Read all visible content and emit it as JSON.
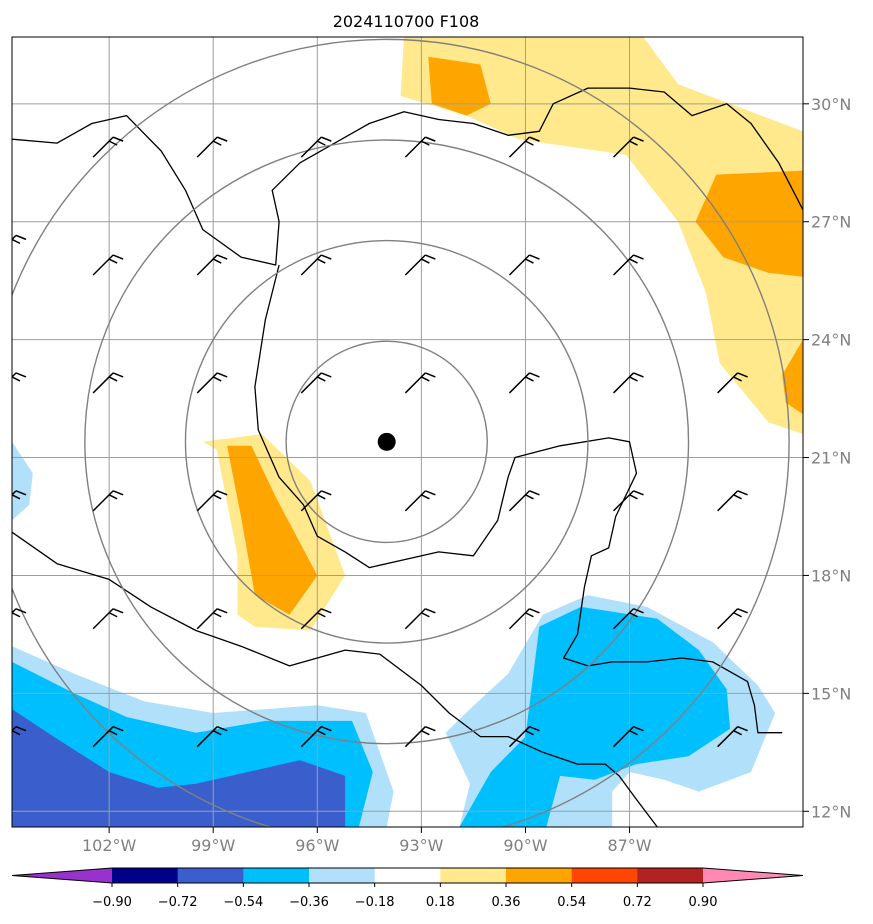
{
  "chart_data": {
    "type": "map",
    "title": "2024110700 F108",
    "projection": "lat-lon",
    "lon_range": [
      -104.8,
      -82.0
    ],
    "lat_range": [
      11.6,
      31.7
    ],
    "x_ticks": [
      {
        "lon": -102,
        "label": "102°W"
      },
      {
        "lon": -99,
        "label": "99°W"
      },
      {
        "lon": -96,
        "label": "96°W"
      },
      {
        "lon": -93,
        "label": "93°W"
      },
      {
        "lon": -90,
        "label": "90°W"
      },
      {
        "lon": -87,
        "label": "87°W"
      }
    ],
    "y_ticks": [
      {
        "lat": 12,
        "label": "12°N"
      },
      {
        "lat": 15,
        "label": "15°N"
      },
      {
        "lat": 18,
        "label": "18°N"
      },
      {
        "lat": 21,
        "label": "21°N"
      },
      {
        "lat": 24,
        "label": "24°N"
      },
      {
        "lat": 27,
        "label": "27°N"
      },
      {
        "lat": 30,
        "label": "30°N"
      }
    ],
    "grid": true,
    "center": {
      "lon": -94.0,
      "lat": 21.4
    },
    "range_rings_deg": [
      2.9,
      5.8,
      8.7,
      11.6
    ],
    "colorbar": {
      "levels": [
        "−0.90",
        "−0.72",
        "−0.54",
        "−0.36",
        "−0.18",
        "0.18",
        "0.36",
        "0.54",
        "0.72",
        "0.90"
      ],
      "colors": [
        "#9932cc",
        "#00008b",
        "#3a5fcd",
        "#00bfff",
        "#b0e0fa",
        "#ffffff",
        "#ffe98c",
        "#ffa500",
        "#ff4500",
        "#b22222",
        "#ff88b4"
      ],
      "extend": "both"
    },
    "filled_regions": [
      {
        "level": "0.18-0.36",
        "color": "#ffe98c",
        "points": [
          [
            -93.5,
            31.7
          ],
          [
            -86.6,
            31.7
          ],
          [
            -85.6,
            30.5
          ],
          [
            -82.0,
            29.3
          ],
          [
            -82.0,
            21.6
          ],
          [
            -83.0,
            21.9
          ],
          [
            -84.4,
            23.4
          ],
          [
            -84.8,
            25.2
          ],
          [
            -85.6,
            27.0
          ],
          [
            -87.1,
            28.7
          ],
          [
            -90.2,
            29.1
          ],
          [
            -91.7,
            29.7
          ],
          [
            -93.6,
            30.2
          ]
        ]
      },
      {
        "level": "0.36-0.54",
        "color": "#ffa500",
        "points": [
          [
            -92.8,
            31.2
          ],
          [
            -91.3,
            31.0
          ],
          [
            -91.0,
            30.0
          ],
          [
            -91.7,
            29.7
          ],
          [
            -92.7,
            30.0
          ]
        ]
      },
      {
        "level": "0.36-0.54",
        "color": "#ffa500",
        "points": [
          [
            -84.5,
            28.2
          ],
          [
            -82.0,
            28.3
          ],
          [
            -82.0,
            25.6
          ],
          [
            -83.0,
            25.7
          ],
          [
            -84.3,
            26.1
          ],
          [
            -85.1,
            27.0
          ]
        ]
      },
      {
        "level": "0.36-0.54",
        "color": "#ffa500",
        "points": [
          [
            -82.0,
            24.0
          ],
          [
            -82.0,
            22.1
          ],
          [
            -82.5,
            22.4
          ],
          [
            -82.6,
            23.1
          ]
        ]
      },
      {
        "level": "0.18-0.36",
        "color": "#ffe98c",
        "points": [
          [
            -99.3,
            21.4
          ],
          [
            -97.6,
            21.6
          ],
          [
            -96.2,
            20.4
          ],
          [
            -95.2,
            18.0
          ],
          [
            -96.2,
            16.6
          ],
          [
            -97.8,
            16.7
          ],
          [
            -98.3,
            17.0
          ],
          [
            -98.3,
            18.5
          ],
          [
            -98.9,
            21.2
          ]
        ]
      },
      {
        "level": "0.36-0.54",
        "color": "#ffa500",
        "points": [
          [
            -98.6,
            21.3
          ],
          [
            -97.9,
            21.3
          ],
          [
            -97.2,
            20.0
          ],
          [
            -96.0,
            18.0
          ],
          [
            -96.8,
            17.0
          ],
          [
            -97.8,
            17.5
          ],
          [
            -98.2,
            19.5
          ]
        ]
      },
      {
        "level": "-0.36--0.18",
        "color": "#b0e0fa",
        "points": [
          [
            -104.8,
            21.4
          ],
          [
            -104.2,
            20.6
          ],
          [
            -104.3,
            19.8
          ],
          [
            -104.8,
            19.4
          ]
        ]
      },
      {
        "level": "-0.36--0.18",
        "color": "#b0e0fa",
        "points": [
          [
            -104.8,
            16.2
          ],
          [
            -103.0,
            15.5
          ],
          [
            -101.0,
            14.8
          ],
          [
            -99.0,
            14.5
          ],
          [
            -96.0,
            14.7
          ],
          [
            -94.6,
            14.5
          ],
          [
            -93.8,
            12.5
          ],
          [
            -94.0,
            11.6
          ],
          [
            -104.8,
            11.6
          ]
        ]
      },
      {
        "level": "-0.36--0.18",
        "color": "#b0e0fa",
        "points": [
          [
            -90.5,
            15.5
          ],
          [
            -89.5,
            17.0
          ],
          [
            -88.2,
            17.5
          ],
          [
            -86.5,
            17.2
          ],
          [
            -84.6,
            16.3
          ],
          [
            -83.3,
            15.2
          ],
          [
            -82.8,
            14.5
          ],
          [
            -83.5,
            13.0
          ],
          [
            -85.0,
            12.5
          ],
          [
            -86.0,
            12.8
          ],
          [
            -87.0,
            13.0
          ],
          [
            -87.5,
            12.5
          ],
          [
            -87.5,
            11.6
          ],
          [
            -91.9,
            11.6
          ],
          [
            -91.6,
            12.7
          ],
          [
            -92.3,
            14.0
          ],
          [
            -91.6,
            14.6
          ]
        ]
      },
      {
        "level": "-0.54--0.36",
        "color": "#00bfff",
        "points": [
          [
            -104.8,
            15.8
          ],
          [
            -103.0,
            15.0
          ],
          [
            -101.5,
            14.4
          ],
          [
            -99.5,
            14.0
          ],
          [
            -97.5,
            14.3
          ],
          [
            -95.0,
            14.3
          ],
          [
            -94.4,
            13.0
          ],
          [
            -94.8,
            11.6
          ],
          [
            -104.8,
            11.6
          ]
        ]
      },
      {
        "level": "-0.54--0.36",
        "color": "#00bfff",
        "points": [
          [
            -89.6,
            16.7
          ],
          [
            -88.4,
            17.2
          ],
          [
            -86.2,
            16.9
          ],
          [
            -85.0,
            16.1
          ],
          [
            -84.2,
            15.1
          ],
          [
            -84.1,
            14.1
          ],
          [
            -85.3,
            13.4
          ],
          [
            -86.8,
            13.2
          ],
          [
            -88.0,
            12.8
          ],
          [
            -89.0,
            12.9
          ],
          [
            -89.4,
            11.6
          ],
          [
            -91.9,
            11.6
          ],
          [
            -91.0,
            13.0
          ],
          [
            -90.0,
            13.9
          ],
          [
            -89.8,
            15.3
          ]
        ]
      },
      {
        "level": "-0.72--0.54",
        "color": "#3a5fcd",
        "points": [
          [
            -104.8,
            14.6
          ],
          [
            -103.6,
            13.9
          ],
          [
            -102.0,
            13.0
          ],
          [
            -100.6,
            12.6
          ],
          [
            -99.5,
            12.7
          ],
          [
            -98.0,
            13.0
          ],
          [
            -96.5,
            13.3
          ],
          [
            -95.2,
            12.9
          ],
          [
            -95.2,
            11.6
          ],
          [
            -104.8,
            11.6
          ]
        ]
      }
    ],
    "wind_barbs": [
      {
        "lon": -104.8,
        "lat": 26.5
      },
      {
        "lon": -102.0,
        "lat": 26.0
      },
      {
        "lon": -99.0,
        "lat": 26.0
      },
      {
        "lon": -96.0,
        "lat": 26.0
      },
      {
        "lon": -93.0,
        "lat": 26.0
      },
      {
        "lon": -90.0,
        "lat": 26.0
      },
      {
        "lon": -87.0,
        "lat": 26.0
      },
      {
        "lon": -102.0,
        "lat": 29.0
      },
      {
        "lon": -99.0,
        "lat": 29.0
      },
      {
        "lon": -96.0,
        "lat": 29.0
      },
      {
        "lon": -93.0,
        "lat": 29.0
      },
      {
        "lon": -90.0,
        "lat": 29.0
      },
      {
        "lon": -87.0,
        "lat": 29.0
      },
      {
        "lon": -104.8,
        "lat": 23.0
      },
      {
        "lon": -102.0,
        "lat": 23.0
      },
      {
        "lon": -99.0,
        "lat": 23.0
      },
      {
        "lon": -96.0,
        "lat": 23.0
      },
      {
        "lon": -93.0,
        "lat": 23.0
      },
      {
        "lon": -90.0,
        "lat": 23.0
      },
      {
        "lon": -87.0,
        "lat": 23.0
      },
      {
        "lon": -84.0,
        "lat": 23.0
      },
      {
        "lon": -104.8,
        "lat": 20.0
      },
      {
        "lon": -102.0,
        "lat": 20.0
      },
      {
        "lon": -99.0,
        "lat": 20.0
      },
      {
        "lon": -96.0,
        "lat": 20.0
      },
      {
        "lon": -93.0,
        "lat": 20.0
      },
      {
        "lon": -90.0,
        "lat": 20.0
      },
      {
        "lon": -87.0,
        "lat": 20.0
      },
      {
        "lon": -84.0,
        "lat": 20.0
      },
      {
        "lon": -104.8,
        "lat": 17.0
      },
      {
        "lon": -102.0,
        "lat": 17.0
      },
      {
        "lon": -99.0,
        "lat": 17.0
      },
      {
        "lon": -96.0,
        "lat": 17.0
      },
      {
        "lon": -93.0,
        "lat": 17.0
      },
      {
        "lon": -90.0,
        "lat": 17.0
      },
      {
        "lon": -87.0,
        "lat": 17.0
      },
      {
        "lon": -84.0,
        "lat": 17.0
      },
      {
        "lon": -104.8,
        "lat": 14.0
      },
      {
        "lon": -102.0,
        "lat": 14.0
      },
      {
        "lon": -99.0,
        "lat": 14.0
      },
      {
        "lon": -96.0,
        "lat": 14.0
      },
      {
        "lon": -93.0,
        "lat": 14.0
      },
      {
        "lon": -90.0,
        "lat": 14.0
      },
      {
        "lon": -87.0,
        "lat": 14.0
      },
      {
        "lon": -84.0,
        "lat": 14.0
      }
    ],
    "coastline": [
      [
        -104.8,
        29.1
      ],
      [
        -103.5,
        29.0
      ],
      [
        -102.5,
        29.5
      ],
      [
        -101.5,
        29.7
      ],
      [
        -100.5,
        28.8
      ],
      [
        -99.8,
        27.8
      ],
      [
        -99.3,
        26.8
      ],
      [
        -98.2,
        26.1
      ],
      [
        -97.2,
        25.9
      ],
      [
        -97.1,
        27.0
      ],
      [
        -97.3,
        27.8
      ],
      [
        -96.5,
        28.5
      ],
      [
        -95.3,
        29.1
      ],
      [
        -94.5,
        29.5
      ],
      [
        -93.5,
        29.8
      ],
      [
        -92.5,
        29.6
      ],
      [
        -91.5,
        29.5
      ],
      [
        -90.5,
        29.2
      ],
      [
        -89.6,
        29.3
      ],
      [
        -89.2,
        30.0
      ],
      [
        -88.2,
        30.4
      ],
      [
        -87.0,
        30.4
      ],
      [
        -86.0,
        30.3
      ],
      [
        -85.2,
        29.7
      ],
      [
        -84.2,
        30.0
      ],
      [
        -83.5,
        29.5
      ],
      [
        -82.7,
        28.5
      ],
      [
        -82.0,
        27.3
      ]
    ],
    "coastline2": [
      [
        -97.1,
        25.9
      ],
      [
        -97.5,
        24.5
      ],
      [
        -97.8,
        22.8
      ],
      [
        -97.7,
        21.7
      ],
      [
        -97.1,
        20.5
      ],
      [
        -96.4,
        19.8
      ],
      [
        -96.0,
        19.0
      ],
      [
        -95.2,
        18.6
      ],
      [
        -94.5,
        18.2
      ],
      [
        -93.5,
        18.4
      ],
      [
        -92.5,
        18.6
      ],
      [
        -91.5,
        18.5
      ],
      [
        -90.8,
        19.4
      ],
      [
        -90.5,
        20.5
      ],
      [
        -90.3,
        21.0
      ],
      [
        -89.0,
        21.3
      ],
      [
        -87.6,
        21.5
      ],
      [
        -87.0,
        21.4
      ],
      [
        -86.8,
        20.6
      ],
      [
        -87.4,
        19.5
      ],
      [
        -87.6,
        18.7
      ],
      [
        -88.1,
        18.5
      ],
      [
        -88.3,
        17.7
      ],
      [
        -88.5,
        16.5
      ],
      [
        -88.9,
        15.9
      ],
      [
        -88.2,
        15.7
      ],
      [
        -87.5,
        15.8
      ],
      [
        -86.5,
        15.8
      ],
      [
        -85.5,
        15.9
      ],
      [
        -84.6,
        15.8
      ],
      [
        -83.6,
        15.3
      ],
      [
        -83.4,
        14.7
      ],
      [
        -83.3,
        14.0
      ],
      [
        -82.6,
        14.0
      ]
    ],
    "coastline3": [
      [
        -104.8,
        19.1
      ],
      [
        -103.5,
        18.3
      ],
      [
        -102.0,
        17.9
      ],
      [
        -100.8,
        17.2
      ],
      [
        -99.5,
        16.6
      ],
      [
        -98.2,
        16.2
      ],
      [
        -96.8,
        15.7
      ],
      [
        -95.2,
        16.1
      ],
      [
        -94.2,
        16.0
      ],
      [
        -93.0,
        15.2
      ],
      [
        -92.2,
        14.5
      ],
      [
        -91.3,
        13.9
      ],
      [
        -90.5,
        13.9
      ],
      [
        -89.5,
        13.5
      ],
      [
        -88.5,
        13.2
      ],
      [
        -87.7,
        13.2
      ],
      [
        -87.3,
        12.9
      ],
      [
        -86.8,
        12.3
      ],
      [
        -86.2,
        11.6
      ]
    ]
  }
}
